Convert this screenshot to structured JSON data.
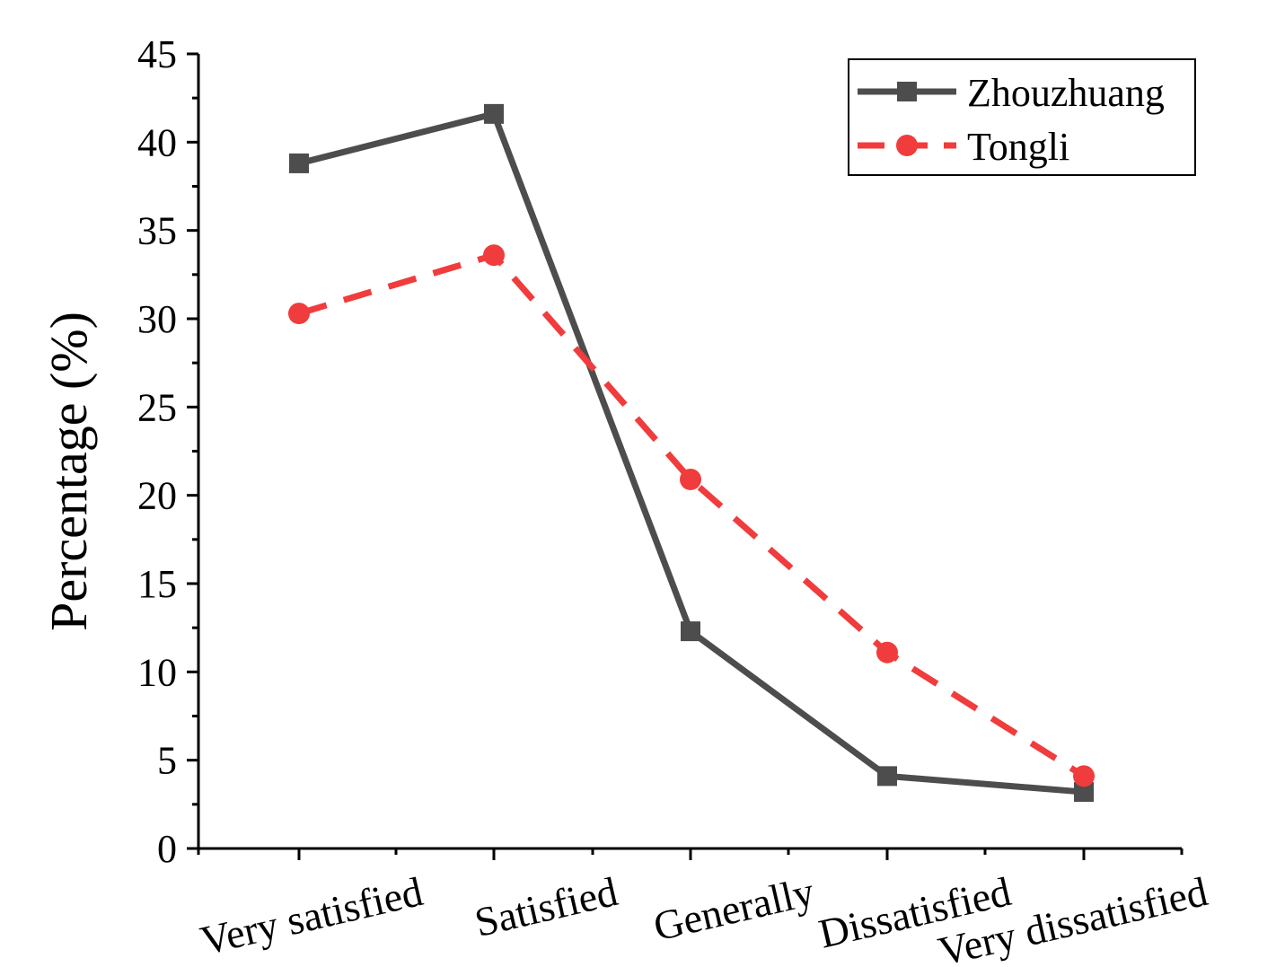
{
  "chart_data": {
    "type": "line",
    "title": "",
    "xlabel": "",
    "ylabel": "Percentage (%)",
    "ylim": [
      0,
      45
    ],
    "yticks": [
      "0",
      "5",
      "10",
      "15",
      "20",
      "25",
      "30",
      "35",
      "40",
      "45"
    ],
    "categories": [
      "Very satisfied",
      "Satisfied",
      "Generally",
      "Dissatisfied",
      "Very dissatisfied"
    ],
    "series": [
      {
        "name": "Zhouzhuang",
        "values": [
          38.8,
          41.6,
          12.3,
          4.1,
          3.2
        ],
        "color": "#4d4d4d",
        "marker": "square",
        "dash": "solid"
      },
      {
        "name": "Tongli",
        "values": [
          30.3,
          33.6,
          20.9,
          11.1,
          4.1
        ],
        "color": "#f03c3c",
        "marker": "circle",
        "dash": "dashed"
      }
    ],
    "grid": false,
    "legend_position": "top-right"
  }
}
